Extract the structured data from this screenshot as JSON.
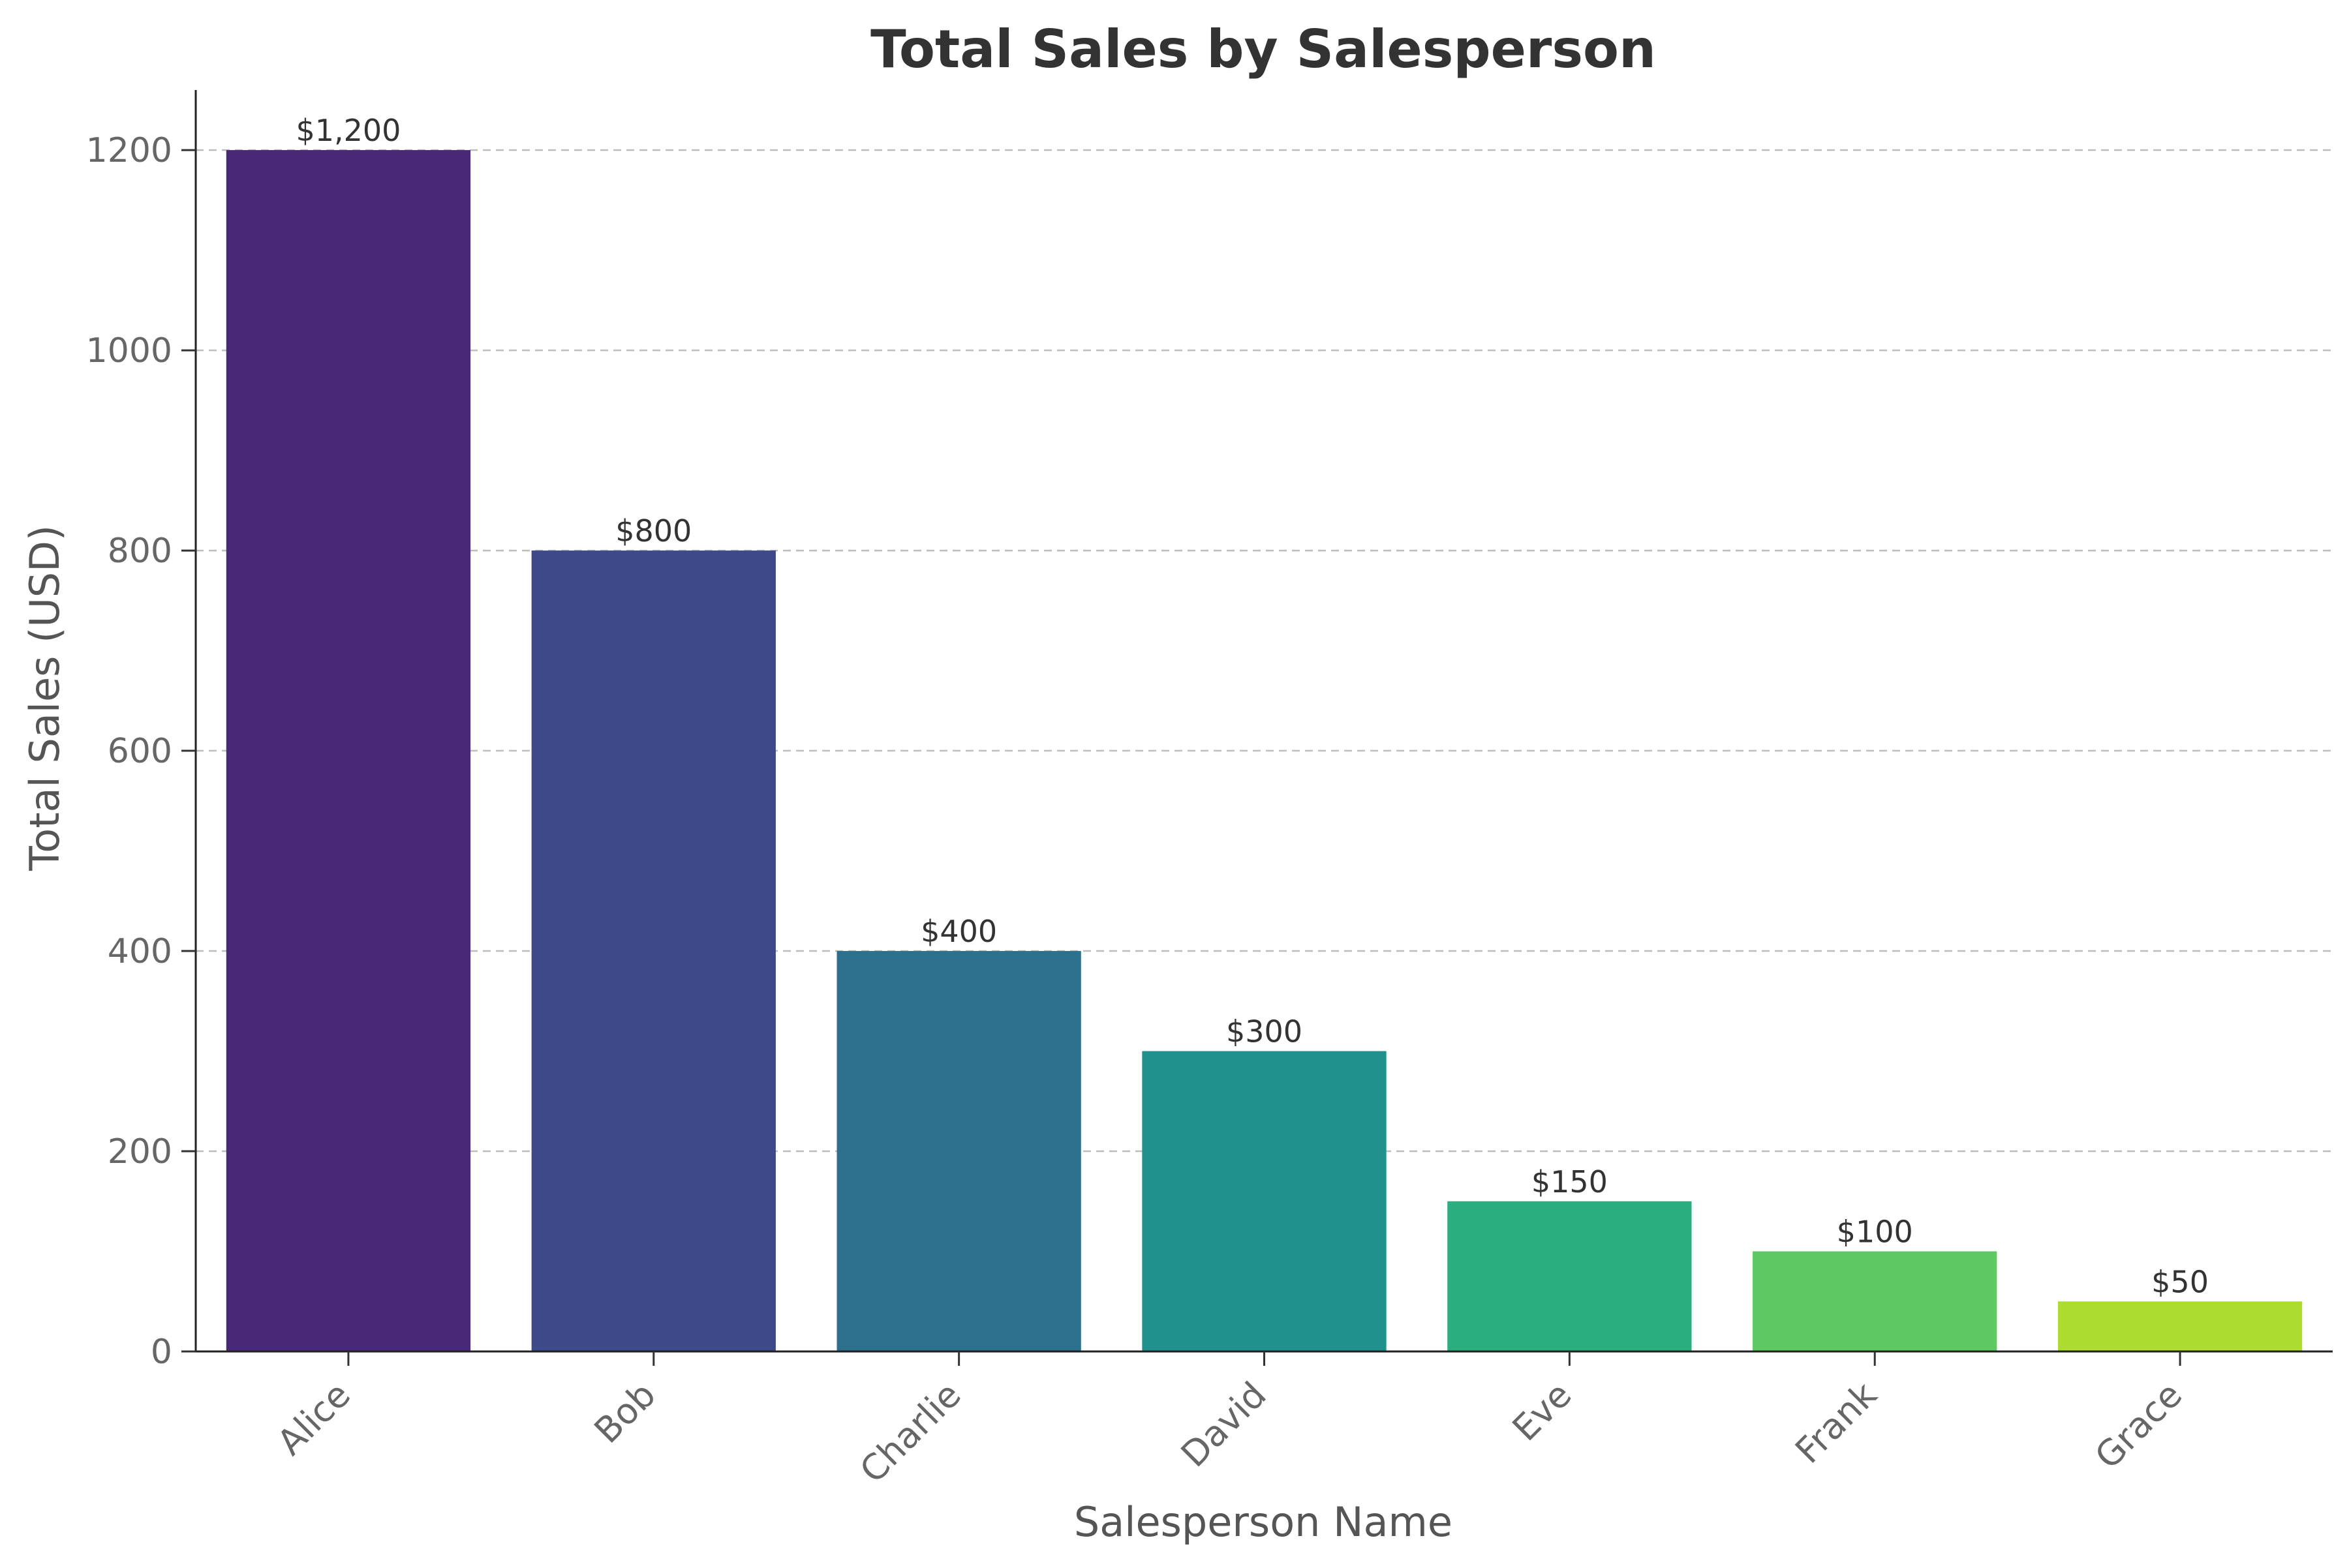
{
  "chart_data": {
    "type": "bar",
    "title": "Total Sales by Salesperson",
    "xlabel": "Salesperson Name",
    "ylabel": "Total Sales (USD)",
    "categories": [
      "Alice",
      "Bob",
      "Charlie",
      "David",
      "Eve",
      "Frank",
      "Grace"
    ],
    "values": [
      1200,
      800,
      400,
      300,
      150,
      100,
      50
    ],
    "data_labels": [
      "$1,200",
      "$800",
      "$400",
      "$300",
      "$150",
      "$100",
      "$50"
    ],
    "colors": [
      "#482878",
      "#3e4989",
      "#2d708e",
      "#20918c",
      "#2aae80",
      "#5ec962",
      "#addc30"
    ],
    "ylim": [
      0,
      1260
    ],
    "yticks": [
      0,
      200,
      400,
      600,
      800,
      1000,
      1200
    ],
    "grid": "y-dashed",
    "legend": "none"
  }
}
